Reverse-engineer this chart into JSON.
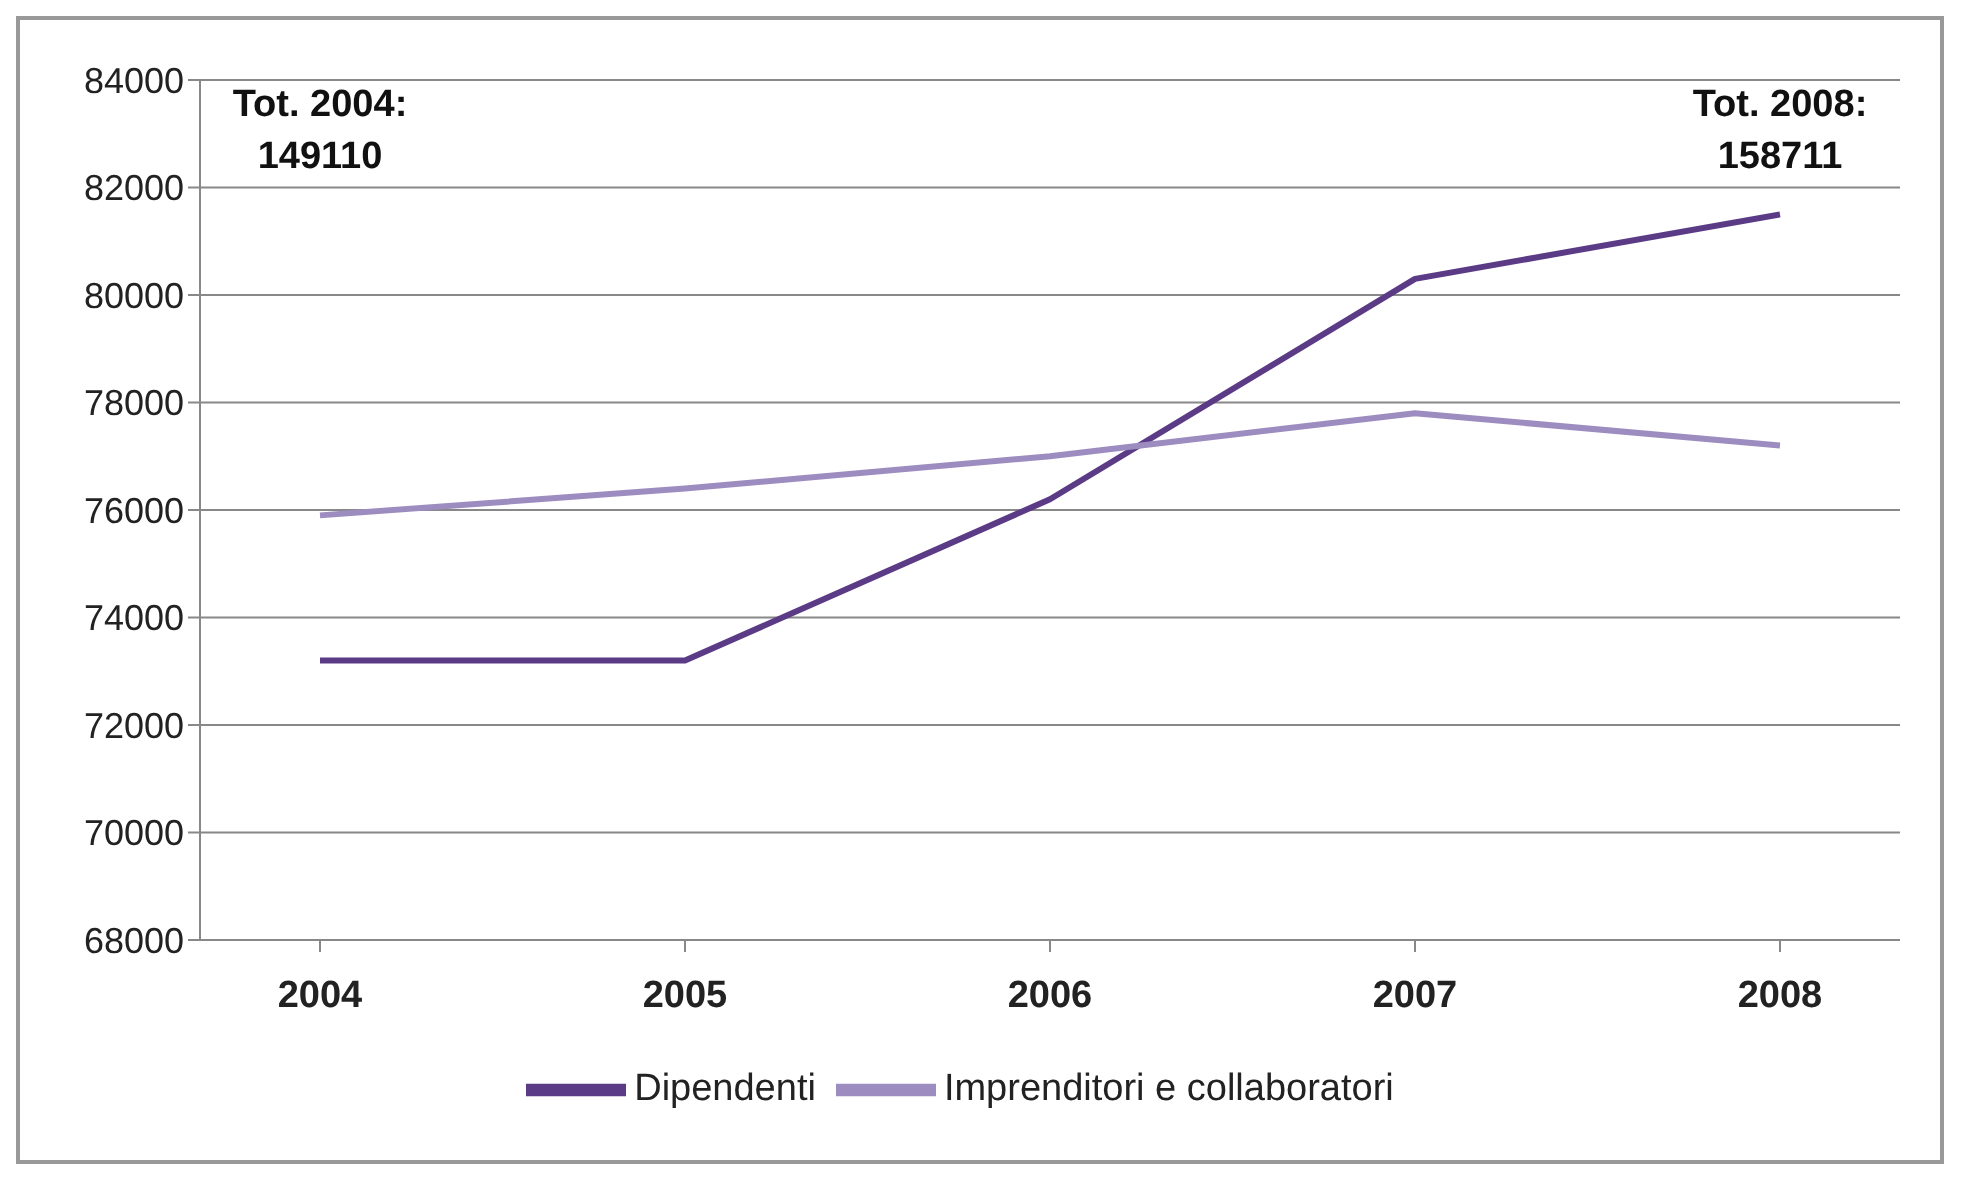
{
  "chart_data": {
    "type": "line",
    "categories": [
      "2004",
      "2005",
      "2006",
      "2007",
      "2008"
    ],
    "series": [
      {
        "name": "Dipendenti",
        "color": "#5b3a86",
        "values": [
          73200,
          73200,
          76200,
          80300,
          81500
        ]
      },
      {
        "name": "Imprenditori e collaboratori",
        "color": "#9d8cbf",
        "values": [
          75900,
          76400,
          77000,
          77800,
          77200
        ]
      }
    ],
    "ylim": [
      68000,
      84000
    ],
    "yticks": [
      68000,
      70000,
      72000,
      74000,
      76000,
      78000,
      80000,
      82000,
      84000
    ],
    "grid": "y",
    "legend": "bottom",
    "marker": "none",
    "line_style": "solid",
    "annotations": [
      "Tot. 2004:\n149110",
      "Tot. 2008:\n158711"
    ]
  }
}
